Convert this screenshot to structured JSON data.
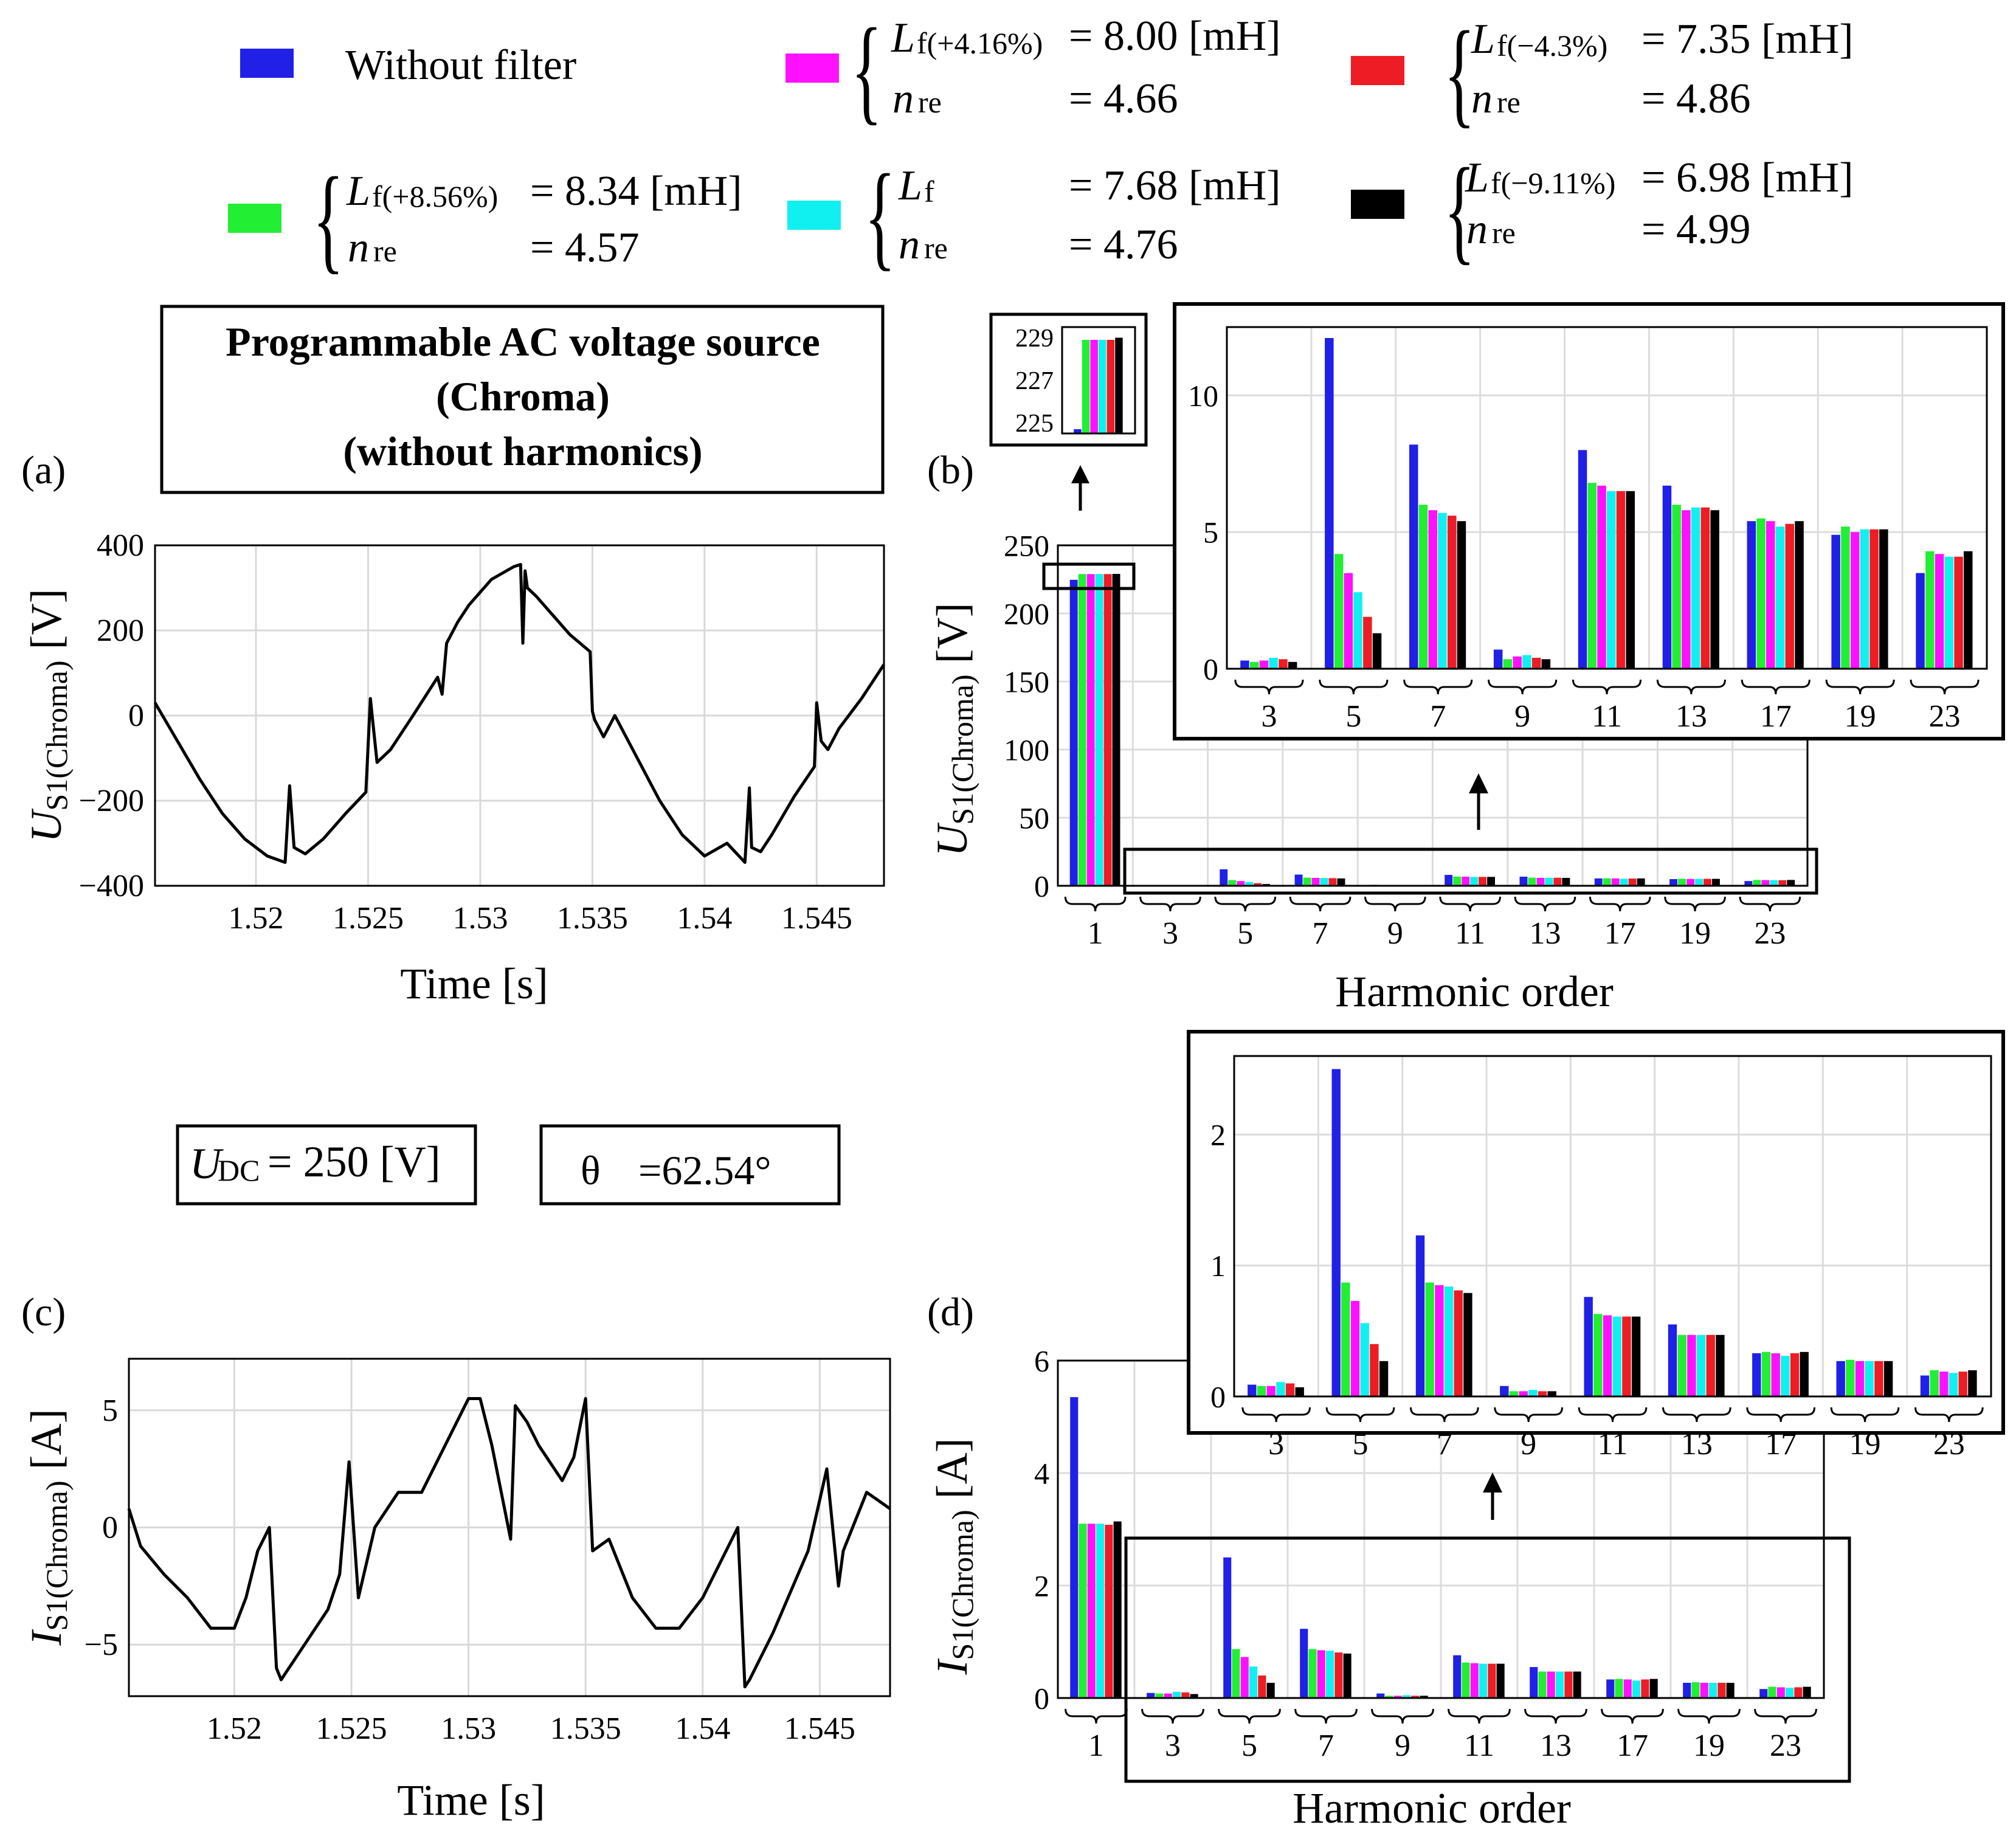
{
  "colors": {
    "without_filter": "#2020e6",
    "green": "#22ee33",
    "magenta": "#ff11ff",
    "cyan": "#11f0f0",
    "red": "#ee1c24",
    "black": "#000000"
  },
  "legend": [
    {
      "key": "without_filter",
      "color": "#2020e6",
      "label": "Without filter"
    },
    {
      "key": "lf_p416",
      "color": "#ff11ff",
      "l_sub": "f(+4.16%)",
      "l_val": "= 8.00 [mH]",
      "n_val": "= 4.66"
    },
    {
      "key": "lf_m43",
      "color": "#ee1c24",
      "l_sub": "f(−4.3%)",
      "l_val": "= 7.35  [mH]",
      "n_val": "= 4.86"
    },
    {
      "key": "lf_p856",
      "color": "#22ee33",
      "l_sub": "f(+8.56%)",
      "l_val": "= 8.34 [mH]",
      "n_val": "= 4.57"
    },
    {
      "key": "lf",
      "color": "#11f0f0",
      "l_sub": "f",
      "l_val": "= 7.68 [mH]",
      "n_val": "= 4.76"
    },
    {
      "key": "lf_m911",
      "color": "#000000",
      "l_sub": "f(−9.11%)",
      "l_val": "= 6.98  [mH]",
      "n_val": "= 4.99"
    }
  ],
  "legend_symbols": {
    "L": "L",
    "n": "n",
    "n_sub": "re"
  },
  "source_box": [
    "Programmable AC voltage source",
    "(Chroma)",
    "(without harmonics)"
  ],
  "udc_box": {
    "symbol": "U",
    "sub": "DC",
    "value": "= 250 [V]"
  },
  "theta_box": {
    "symbol": "θ",
    "value": "=62.54°"
  },
  "panel_labels": {
    "a": "(a)",
    "b": "(b)",
    "c": "(c)",
    "d": "(d)"
  },
  "chart_data": [
    {
      "id": "a",
      "type": "line",
      "xlabel": "Time [s]",
      "ylabel": {
        "symbol": "U",
        "sub": "S1(Chroma)",
        "unit": " [V]"
      },
      "xlim": [
        1.5155,
        1.548
      ],
      "ylim": [
        -400,
        400
      ],
      "xticks": [
        1.52,
        1.525,
        1.53,
        1.535,
        1.54,
        1.545
      ],
      "xtick_labels": [
        "1.52",
        "1.525",
        "1.53",
        "1.535",
        "1.54",
        "1.545"
      ],
      "yticks": [
        -400,
        -200,
        0,
        200,
        400
      ],
      "ytick_labels": [
        "−400",
        "−200",
        "0",
        "200",
        "400"
      ],
      "grid": true,
      "x": [
        1.5155,
        1.5165,
        1.5175,
        1.5185,
        1.5195,
        1.5205,
        1.5213,
        1.5215,
        1.5217,
        1.5222,
        1.523,
        1.524,
        1.5249,
        1.5251,
        1.5254,
        1.526,
        1.527,
        1.5281,
        1.5283,
        1.5285,
        1.529,
        1.5295,
        1.5305,
        1.5315,
        1.5318,
        1.5319,
        1.532,
        1.5321,
        1.5325,
        1.533,
        1.534,
        1.5349,
        1.535,
        1.5351,
        1.5355,
        1.536,
        1.537,
        1.538,
        1.539,
        1.54,
        1.541,
        1.5418,
        1.542,
        1.5421,
        1.5425,
        1.543,
        1.544,
        1.5449,
        1.545,
        1.5452,
        1.5455,
        1.546,
        1.547,
        1.548
      ],
      "y": [
        30,
        -60,
        -150,
        -230,
        -290,
        -330,
        -345,
        -165,
        -310,
        -325,
        -290,
        -230,
        -180,
        40,
        -110,
        -80,
        0,
        90,
        50,
        170,
        220,
        260,
        320,
        350,
        355,
        170,
        340,
        300,
        280,
        250,
        190,
        150,
        10,
        -10,
        -50,
        0,
        -100,
        -200,
        -280,
        -330,
        -300,
        -345,
        -170,
        -310,
        -320,
        -280,
        -190,
        -120,
        30,
        -60,
        -80,
        -30,
        40,
        120
      ]
    },
    {
      "id": "b",
      "type": "bar",
      "xlabel": "Harmonic order",
      "ylabel": {
        "symbol": "U",
        "sub": "S1(Chroma)",
        "unit": " [V]"
      },
      "ylim": [
        0,
        250
      ],
      "yticks": [
        0,
        50,
        100,
        150,
        200,
        250
      ],
      "categories": [
        "1",
        "3",
        "5",
        "7",
        "9",
        "11",
        "13",
        "17",
        "19",
        "23"
      ],
      "series": [
        {
          "name": "Without filter",
          "color_key": "without_filter",
          "values": [
            224.7,
            0.3,
            12.1,
            8.2,
            0.7,
            8.0,
            6.7,
            5.4,
            4.9,
            3.5
          ]
        },
        {
          "color_key": "green",
          "values": [
            228.9,
            0.25,
            4.2,
            6.0,
            0.35,
            6.8,
            6.0,
            5.5,
            5.2,
            4.3
          ]
        },
        {
          "color_key": "magenta",
          "values": [
            228.9,
            0.3,
            3.5,
            5.8,
            0.45,
            6.7,
            5.8,
            5.4,
            5.0,
            4.2
          ]
        },
        {
          "color_key": "cyan",
          "values": [
            228.9,
            0.4,
            2.8,
            5.7,
            0.5,
            6.5,
            5.9,
            5.2,
            5.1,
            4.1
          ]
        },
        {
          "color_key": "red",
          "values": [
            228.9,
            0.35,
            1.9,
            5.6,
            0.4,
            6.5,
            5.9,
            5.3,
            5.1,
            4.1
          ]
        },
        {
          "color_key": "black",
          "values": [
            229.0,
            0.25,
            1.3,
            5.4,
            0.35,
            6.5,
            5.8,
            5.4,
            5.1,
            4.3
          ]
        }
      ],
      "zoom_fundamental": {
        "yticks": [
          225,
          227,
          229
        ],
        "ylim": [
          224.5,
          229.5
        ]
      },
      "zoom_harmonics": {
        "categories": [
          "3",
          "5",
          "7",
          "9",
          "11",
          "13",
          "17",
          "19",
          "23"
        ],
        "ylim": [
          0,
          12.5
        ],
        "yticks": [
          0,
          5,
          10
        ]
      }
    },
    {
      "id": "c",
      "type": "line",
      "xlabel": "Time [s]",
      "ylabel": {
        "symbol": "I",
        "sub": "S1(Chroma)",
        "unit": " [A]"
      },
      "xlim": [
        1.5155,
        1.548
      ],
      "ylim": [
        -7.2,
        7.2
      ],
      "xticks": [
        1.52,
        1.525,
        1.53,
        1.535,
        1.54,
        1.545
      ],
      "xtick_labels": [
        "1.52",
        "1.525",
        "1.53",
        "1.535",
        "1.54",
        "1.545"
      ],
      "yticks": [
        -5,
        0,
        5
      ],
      "ytick_labels": [
        "−5",
        "0",
        "5"
      ],
      "grid": true,
      "x": [
        1.5155,
        1.516,
        1.517,
        1.518,
        1.519,
        1.52,
        1.5205,
        1.521,
        1.5215,
        1.5218,
        1.522,
        1.523,
        1.524,
        1.5245,
        1.5249,
        1.5253,
        1.526,
        1.527,
        1.528,
        1.529,
        1.53,
        1.5305,
        1.531,
        1.5318,
        1.532,
        1.5325,
        1.533,
        1.534,
        1.5345,
        1.535,
        1.5353,
        1.536,
        1.537,
        1.538,
        1.539,
        1.54,
        1.541,
        1.5415,
        1.5418,
        1.542,
        1.543,
        1.5445,
        1.5453,
        1.5458,
        1.546,
        1.547,
        1.548
      ],
      "y": [
        0.8,
        -0.8,
        -2,
        -3,
        -4.3,
        -4.3,
        -3,
        -1,
        0,
        -6,
        -6.5,
        -5,
        -3.5,
        -2,
        2.8,
        -3,
        0,
        1.5,
        1.5,
        3.5,
        5.5,
        5.5,
        3.5,
        -0.5,
        5.2,
        4.5,
        3.5,
        2,
        3,
        5.5,
        -1,
        -0.5,
        -3,
        -4.3,
        -4.3,
        -3,
        -1,
        0,
        -6.8,
        -6.5,
        -4.5,
        -1,
        2.5,
        -2.5,
        -1,
        1.5,
        0.8
      ]
    },
    {
      "id": "d",
      "type": "bar",
      "xlabel": "Harmonic order",
      "ylabel": {
        "symbol": "I",
        "sub": "S1(Chroma)",
        "unit": " [A]"
      },
      "ylim": [
        0,
        6
      ],
      "yticks": [
        0,
        2,
        4,
        6
      ],
      "categories": [
        "1",
        "3",
        "5",
        "7",
        "9",
        "11",
        "13",
        "17",
        "19",
        "23"
      ],
      "series": [
        {
          "name": "Without filter",
          "color_key": "without_filter",
          "values": [
            5.35,
            0.09,
            2.5,
            1.23,
            0.08,
            0.76,
            0.55,
            0.33,
            0.27,
            0.16
          ]
        },
        {
          "color_key": "green",
          "values": [
            3.1,
            0.08,
            0.87,
            0.87,
            0.04,
            0.63,
            0.47,
            0.34,
            0.28,
            0.2
          ]
        },
        {
          "color_key": "magenta",
          "values": [
            3.1,
            0.08,
            0.73,
            0.85,
            0.04,
            0.62,
            0.47,
            0.33,
            0.27,
            0.19
          ]
        },
        {
          "color_key": "cyan",
          "values": [
            3.1,
            0.11,
            0.56,
            0.84,
            0.05,
            0.61,
            0.47,
            0.31,
            0.27,
            0.18
          ]
        },
        {
          "color_key": "red",
          "values": [
            3.08,
            0.1,
            0.4,
            0.81,
            0.04,
            0.61,
            0.47,
            0.33,
            0.27,
            0.19
          ]
        },
        {
          "color_key": "black",
          "values": [
            3.14,
            0.07,
            0.27,
            0.79,
            0.04,
            0.61,
            0.47,
            0.34,
            0.27,
            0.2
          ]
        }
      ],
      "zoom_harmonics": {
        "categories": [
          "3",
          "5",
          "7",
          "9",
          "11",
          "13",
          "17",
          "19",
          "23"
        ],
        "ylim": [
          0,
          2.6
        ],
        "yticks": [
          0,
          1,
          2
        ]
      }
    }
  ]
}
